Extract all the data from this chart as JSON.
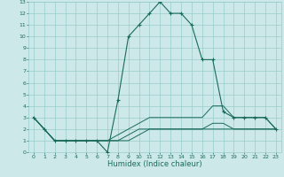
{
  "xlabel": "Humidex (Indice chaleur)",
  "bg_color": "#cce8e8",
  "grid_color": "#99cccc",
  "line_color": "#1a6b5a",
  "xlim": [
    -0.5,
    23.5
  ],
  "ylim": [
    0,
    13
  ],
  "xticks": [
    0,
    1,
    2,
    3,
    4,
    5,
    6,
    7,
    8,
    9,
    10,
    11,
    12,
    13,
    14,
    15,
    16,
    17,
    18,
    19,
    20,
    21,
    22,
    23
  ],
  "yticks": [
    0,
    1,
    2,
    3,
    4,
    5,
    6,
    7,
    8,
    9,
    10,
    11,
    12,
    13
  ],
  "curve1_x": [
    0,
    1,
    2,
    3,
    4,
    5,
    6,
    7,
    8,
    9,
    10,
    11,
    12,
    13,
    14,
    15,
    16,
    17,
    18,
    19,
    20,
    21,
    22,
    23
  ],
  "curve1_y": [
    3,
    2,
    1,
    1,
    1,
    1,
    1,
    0,
    4.5,
    10,
    11,
    12,
    13,
    12,
    12,
    11,
    8,
    8,
    3.5,
    3,
    3,
    3,
    3,
    2
  ],
  "curve2_x": [
    0,
    1,
    2,
    3,
    4,
    5,
    6,
    7,
    8,
    9,
    10,
    11,
    12,
    13,
    14,
    15,
    16,
    17,
    18,
    19,
    20,
    21,
    22,
    23
  ],
  "curve2_y": [
    3,
    2,
    1,
    1,
    1,
    1,
    1,
    1,
    1.5,
    2,
    2.5,
    3,
    3,
    3,
    3,
    3,
    3,
    4,
    4,
    3,
    3,
    3,
    3,
    2
  ],
  "curve3_x": [
    0,
    1,
    2,
    3,
    4,
    5,
    6,
    7,
    8,
    9,
    10,
    11,
    12,
    13,
    14,
    15,
    16,
    17,
    18,
    19,
    20,
    21,
    22,
    23
  ],
  "curve3_y": [
    3,
    2,
    1,
    1,
    1,
    1,
    1,
    1,
    1,
    1.5,
    2,
    2,
    2,
    2,
    2,
    2,
    2,
    2.5,
    2.5,
    2,
    2,
    2,
    2,
    2
  ],
  "curve4_x": [
    0,
    1,
    2,
    3,
    4,
    5,
    6,
    7,
    8,
    9,
    10,
    11,
    12,
    13,
    14,
    15,
    16,
    17,
    18,
    19,
    20,
    21,
    22,
    23
  ],
  "curve4_y": [
    3,
    2,
    1,
    1,
    1,
    1,
    1,
    1,
    1,
    1,
    1.5,
    2,
    2,
    2,
    2,
    2,
    2,
    2,
    2,
    2,
    2,
    2,
    2,
    2
  ],
  "xlabel_fontsize": 6,
  "tick_fontsize": 4.5
}
